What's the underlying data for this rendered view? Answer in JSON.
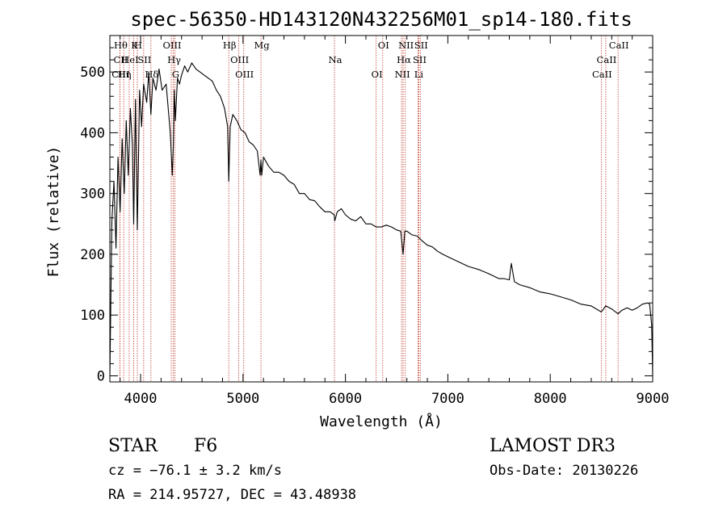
{
  "chart_data": {
    "type": "line",
    "title": "spec-56350-HD143120N432256M01_sp14-180.fits",
    "xlabel": "Wavelength (Å)",
    "ylabel": "Flux (relative)",
    "xlim": [
      3700,
      9000
    ],
    "ylim": [
      -10,
      560
    ],
    "xticks": [
      4000,
      5000,
      6000,
      7000,
      8000,
      9000
    ],
    "yticks": [
      0,
      100,
      200,
      300,
      400,
      500
    ],
    "series": [
      {
        "name": "flux",
        "x": [
          3700,
          3720,
          3740,
          3760,
          3780,
          3800,
          3820,
          3840,
          3860,
          3880,
          3900,
          3920,
          3933,
          3950,
          3968,
          3990,
          4010,
          4030,
          4060,
          4080,
          4101,
          4120,
          4150,
          4180,
          4210,
          4250,
          4290,
          4310,
          4320,
          4330,
          4340,
          4360,
          4380,
          4400,
          4430,
          4460,
          4500,
          4540,
          4580,
          4620,
          4660,
          4700,
          4740,
          4780,
          4820,
          4850,
          4861,
          4875,
          4900,
          4940,
          4980,
          5020,
          5060,
          5100,
          5140,
          5167,
          5175,
          5183,
          5200,
          5250,
          5300,
          5350,
          5400,
          5450,
          5500,
          5550,
          5600,
          5650,
          5700,
          5750,
          5800,
          5850,
          5890,
          5896,
          5920,
          5960,
          6000,
          6050,
          6100,
          6150,
          6200,
          6250,
          6300,
          6350,
          6400,
          6450,
          6500,
          6540,
          6563,
          6580,
          6600,
          6650,
          6700,
          6750,
          6800,
          6850,
          6900,
          6950,
          7000,
          7100,
          7200,
          7300,
          7400,
          7500,
          7550,
          7600,
          7620,
          7650,
          7700,
          7800,
          7900,
          8000,
          8100,
          8200,
          8300,
          8400,
          8498,
          8542,
          8600,
          8662,
          8700,
          8750,
          8800,
          8850,
          8900,
          8950,
          8970,
          8990,
          9000
        ],
        "values": [
          0,
          255,
          320,
          210,
          360,
          270,
          390,
          300,
          420,
          330,
          440,
          380,
          250,
          455,
          240,
          470,
          410,
          480,
          450,
          500,
          430,
          490,
          470,
          505,
          470,
          480,
          400,
          330,
          380,
          470,
          420,
          490,
          480,
          495,
          510,
          500,
          515,
          505,
          500,
          495,
          490,
          485,
          470,
          460,
          440,
          410,
          320,
          410,
          430,
          420,
          405,
          400,
          385,
          380,
          370,
          330,
          355,
          330,
          360,
          345,
          335,
          335,
          330,
          320,
          315,
          300,
          300,
          290,
          288,
          278,
          270,
          270,
          265,
          255,
          270,
          275,
          265,
          258,
          255,
          262,
          250,
          250,
          245,
          245,
          248,
          245,
          240,
          238,
          200,
          238,
          238,
          232,
          230,
          222,
          215,
          212,
          205,
          200,
          196,
          188,
          180,
          175,
          168,
          160,
          160,
          158,
          185,
          155,
          150,
          145,
          138,
          135,
          130,
          125,
          118,
          115,
          105,
          115,
          110,
          102,
          108,
          112,
          108,
          112,
          118,
          120,
          118,
          85,
          0
        ]
      }
    ],
    "lines": [
      {
        "label": "Hθ",
        "x": 3798
      },
      {
        "label": "CII",
        "x": 3798
      },
      {
        "label": "CIII",
        "x": 3798
      },
      {
        "label": "K",
        "x": 3933
      },
      {
        "label": "HeI",
        "x": 3889
      },
      {
        "label": "Hη",
        "x": 3835
      },
      {
        "label": "H",
        "x": 3968
      },
      {
        "label": "SII",
        "x": 4030
      },
      {
        "label": "Hδ",
        "x": 4101
      },
      {
        "label": "OIII",
        "x": 4300
      },
      {
        "label": "Hγ",
        "x": 4320
      },
      {
        "label": "G",
        "x": 4335
      },
      {
        "label": "Hβ",
        "x": 4861
      },
      {
        "label": "OIII",
        "x": 4959
      },
      {
        "label": "OIII",
        "x": 5007
      },
      {
        "label": "Mg",
        "x": 5175
      },
      {
        "label": "Na",
        "x": 5893
      },
      {
        "label": "OI",
        "x": 6300
      },
      {
        "label": "OI",
        "x": 6364
      },
      {
        "label": "Hα",
        "x": 6563
      },
      {
        "label": "NII",
        "x": 6548
      },
      {
        "label": "NII",
        "x": 6584
      },
      {
        "label": "SII",
        "x": 6717
      },
      {
        "label": "Li",
        "x": 6708
      },
      {
        "label": "SII",
        "x": 6731
      },
      {
        "label": "CaII",
        "x": 8542
      },
      {
        "label": "CaII",
        "x": 8498
      },
      {
        "label": "CaII",
        "x": 8662
      }
    ]
  },
  "info": {
    "object_type": "STAR",
    "subclass": "F6",
    "redshift": "cz = −76.1 ± 3.2 km/s",
    "coords": "RA = 214.95727, DEC =  43.48938",
    "survey": "LAMOST DR3",
    "obs_date": "Obs-Date: 20130226"
  },
  "colors": {
    "line_marker": "#c0392b",
    "spectrum": "#000000",
    "axis": "#000000"
  }
}
